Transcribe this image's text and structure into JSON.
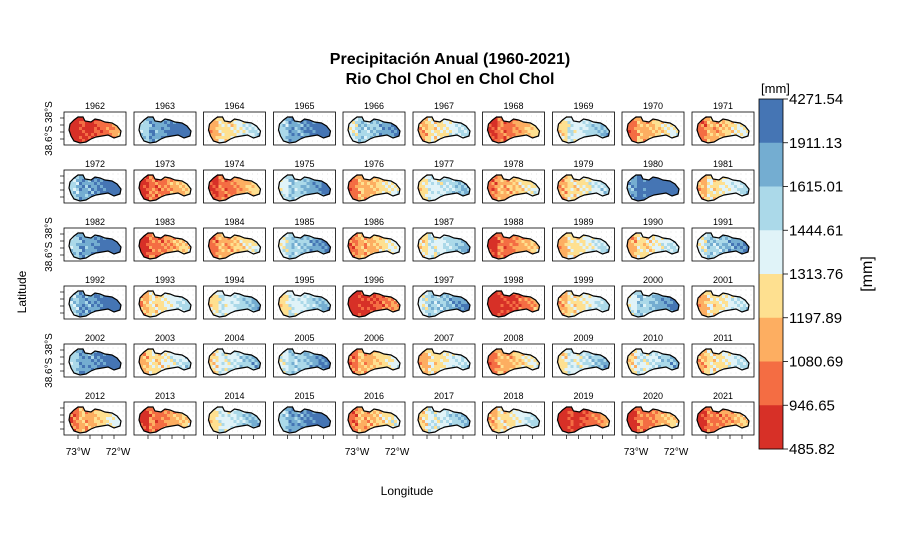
{
  "chart_data": {
    "type": "heatmap",
    "title": "Precipitación Anual (1960-2021)",
    "subtitle": "Rio Chol Chol en Chol Chol",
    "xlabel": "Longitude",
    "ylabel": "Latitude",
    "x_ticks": [
      "73°W",
      "72°W"
    ],
    "y_ticks": [
      "38.6°S",
      "38°S"
    ],
    "legend_title": "[mm]",
    "legend_side_label": "[mm]",
    "legend_breaks": [
      4271.54,
      1911.13,
      1615.01,
      1444.61,
      1313.76,
      1197.89,
      1080.69,
      946.65,
      485.82
    ],
    "legend_labels": [
      "4271.54",
      "1911.13",
      "1615.01",
      "1444.61",
      "1313.76",
      "1197.89",
      "1080.69",
      "946.65",
      "485.82"
    ],
    "legend_colors": [
      "#4575b4",
      "#74add1",
      "#abd9e9",
      "#e0f3f8",
      "#fee090",
      "#fdae61",
      "#f46d43",
      "#d73027"
    ],
    "panels": [
      {
        "year": "1962",
        "level": 0
      },
      {
        "year": "1963",
        "level": 6
      },
      {
        "year": "1964",
        "level": 3
      },
      {
        "year": "1965",
        "level": 6
      },
      {
        "year": "1966",
        "level": 5
      },
      {
        "year": "1967",
        "level": 3
      },
      {
        "year": "1968",
        "level": 1
      },
      {
        "year": "1969",
        "level": 4
      },
      {
        "year": "1970",
        "level": 2
      },
      {
        "year": "1971",
        "level": 2
      },
      {
        "year": "1972",
        "level": 6
      },
      {
        "year": "1973",
        "level": 1
      },
      {
        "year": "1974",
        "level": 1
      },
      {
        "year": "1975",
        "level": 5
      },
      {
        "year": "1976",
        "level": 2
      },
      {
        "year": "1977",
        "level": 4
      },
      {
        "year": "1978",
        "level": 2
      },
      {
        "year": "1979",
        "level": 3
      },
      {
        "year": "1980",
        "level": 7
      },
      {
        "year": "1981",
        "level": 3
      },
      {
        "year": "1982",
        "level": 6
      },
      {
        "year": "1983",
        "level": 1
      },
      {
        "year": "1984",
        "level": 2
      },
      {
        "year": "1985",
        "level": 5
      },
      {
        "year": "1986",
        "level": 2
      },
      {
        "year": "1987",
        "level": 4
      },
      {
        "year": "1988",
        "level": 1
      },
      {
        "year": "1989",
        "level": 3
      },
      {
        "year": "1990",
        "level": 3
      },
      {
        "year": "1991",
        "level": 5
      },
      {
        "year": "1992",
        "level": 6
      },
      {
        "year": "1993",
        "level": 3
      },
      {
        "year": "1994",
        "level": 4
      },
      {
        "year": "1995",
        "level": 4
      },
      {
        "year": "1996",
        "level": 0
      },
      {
        "year": "1997",
        "level": 5
      },
      {
        "year": "1998",
        "level": 0
      },
      {
        "year": "1999",
        "level": 3
      },
      {
        "year": "2000",
        "level": 5
      },
      {
        "year": "2001",
        "level": 3
      },
      {
        "year": "2002",
        "level": 6
      },
      {
        "year": "2003",
        "level": 3
      },
      {
        "year": "2004",
        "level": 4
      },
      {
        "year": "2005",
        "level": 5
      },
      {
        "year": "2006",
        "level": 2
      },
      {
        "year": "2007",
        "level": 3
      },
      {
        "year": "2008",
        "level": 2
      },
      {
        "year": "2009",
        "level": 4
      },
      {
        "year": "2010",
        "level": 4
      },
      {
        "year": "2011",
        "level": 3
      },
      {
        "year": "2012",
        "level": 2
      },
      {
        "year": "2013",
        "level": 1
      },
      {
        "year": "2014",
        "level": 4
      },
      {
        "year": "2015",
        "level": 6
      },
      {
        "year": "2016",
        "level": 2
      },
      {
        "year": "2017",
        "level": 4
      },
      {
        "year": "2018",
        "level": 3
      },
      {
        "year": "2019",
        "level": 0
      },
      {
        "year": "2020",
        "level": 1
      },
      {
        "year": "2021",
        "level": 1
      }
    ]
  }
}
